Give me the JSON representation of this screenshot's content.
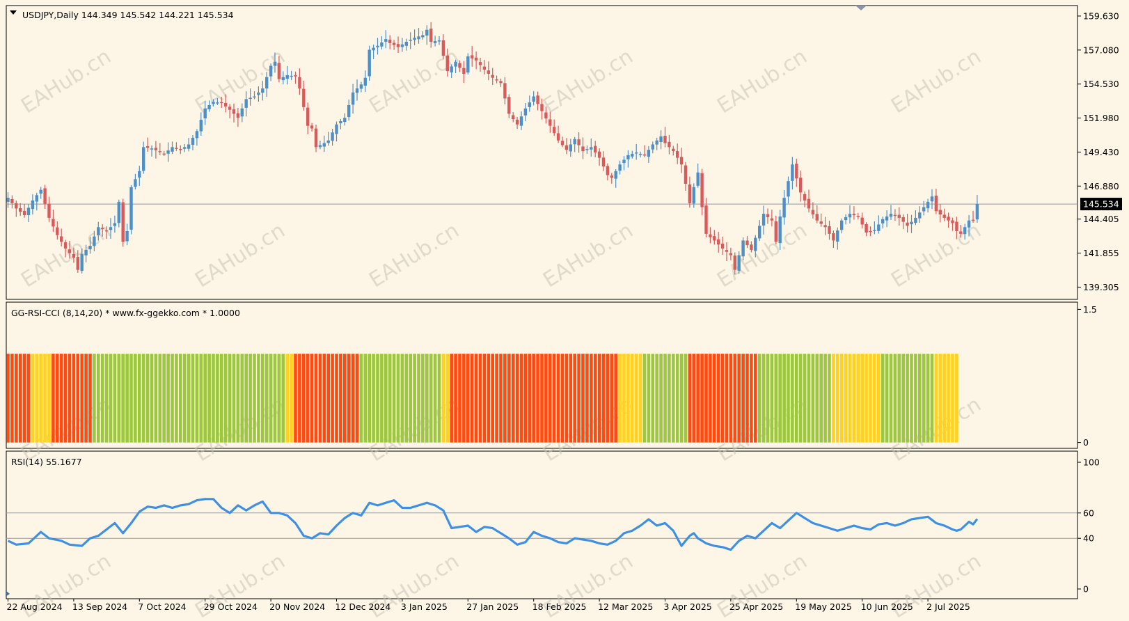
{
  "colors": {
    "background": "#fdf6e7",
    "frame": "#000000",
    "grid": "#999999",
    "text": "#000000",
    "bull": "#4d8fc8",
    "bear": "#d75b5b",
    "rsi_line": "#3e8fe6",
    "price_line": "#8a96a8",
    "price_tag_bg": "#000000",
    "price_tag_text": "#ffffff",
    "hist_red": "#ff4a10",
    "hist_yellow": "#ffd21f",
    "hist_green": "#9dc83e",
    "watermark": "#c9c2b4"
  },
  "watermark_text": "EAHub.cn",
  "chart_data": [
    {
      "type": "candlestick",
      "title": "USDJPY,Daily  144.349 145.542 144.221 145.534",
      "symbol": "USDJPY",
      "timeframe": "Daily",
      "ohlc_readout": {
        "open": 144.349,
        "high": 145.542,
        "low": 144.221,
        "close": 145.534
      },
      "current_price_label": "145.534",
      "current_price": 145.534,
      "ylim": [
        138.7,
        160.1
      ],
      "y_ticks": [
        "159.630",
        "157.080",
        "154.530",
        "151.980",
        "149.430",
        "146.880",
        "144.405",
        "141.855",
        "139.305"
      ],
      "y_tick_values": [
        159.63,
        157.08,
        154.53,
        151.98,
        149.43,
        146.88,
        144.405,
        141.855,
        139.305
      ],
      "x_ticks": [
        "22 Aug 2024",
        "13 Sep 2024",
        "7 Oct 2024",
        "29 Oct 2024",
        "20 Nov 2024",
        "12 Dec 2024",
        "3 Jan 2025",
        "27 Jan 2025",
        "18 Feb 2025",
        "12 Mar 2025",
        "3 Apr 2025",
        "25 Apr 2025",
        "19 May 2025",
        "10 Jun 2025",
        "2 Jul 2025"
      ],
      "close_anchors": [
        [
          0,
          146.0
        ],
        [
          2,
          145.2
        ],
        [
          4,
          144.7
        ],
        [
          6,
          145.8
        ],
        [
          8,
          146.6
        ],
        [
          10,
          144.5
        ],
        [
          12,
          143.2
        ],
        [
          14,
          142.2
        ],
        [
          16,
          141.5
        ],
        [
          17,
          140.6
        ],
        [
          18,
          141.8
        ],
        [
          20,
          142.4
        ],
        [
          22,
          143.8
        ],
        [
          24,
          143.5
        ],
        [
          26,
          144.1
        ],
        [
          27,
          145.7
        ],
        [
          28,
          142.7
        ],
        [
          29,
          143.5
        ],
        [
          30,
          146.8
        ],
        [
          32,
          148.0
        ],
        [
          33,
          149.8
        ],
        [
          35,
          149.7
        ],
        [
          38,
          149.3
        ],
        [
          40,
          149.8
        ],
        [
          42,
          149.6
        ],
        [
          44,
          150.0
        ],
        [
          46,
          151.0
        ],
        [
          48,
          152.7
        ],
        [
          50,
          153.2
        ],
        [
          52,
          153.1
        ],
        [
          54,
          152.6
        ],
        [
          56,
          152.0
        ],
        [
          58,
          153.4
        ],
        [
          60,
          153.6
        ],
        [
          62,
          154.2
        ],
        [
          64,
          155.9
        ],
        [
          65,
          156.2
        ],
        [
          66,
          154.9
        ],
        [
          68,
          155.2
        ],
        [
          70,
          155.1
        ],
        [
          71,
          154.2
        ],
        [
          73,
          151.4
        ],
        [
          74,
          151.2
        ],
        [
          75,
          149.8
        ],
        [
          77,
          150.1
        ],
        [
          78,
          150.3
        ],
        [
          80,
          151.5
        ],
        [
          82,
          152.0
        ],
        [
          84,
          153.9
        ],
        [
          86,
          154.5
        ],
        [
          87,
          155.0
        ],
        [
          88,
          157.1
        ],
        [
          90,
          157.4
        ],
        [
          92,
          157.9
        ],
        [
          93,
          157.6
        ],
        [
          95,
          157.3
        ],
        [
          97,
          157.7
        ],
        [
          99,
          158.0
        ],
        [
          101,
          158.2
        ],
        [
          102,
          158.6
        ],
        [
          103,
          157.7
        ],
        [
          105,
          157.8
        ],
        [
          107,
          155.5
        ],
        [
          109,
          156.2
        ],
        [
          111,
          155.3
        ],
        [
          112,
          156.6
        ],
        [
          114,
          156.3
        ],
        [
          116,
          155.6
        ],
        [
          118,
          155.0
        ],
        [
          120,
          154.6
        ],
        [
          122,
          152.3
        ],
        [
          124,
          151.5
        ],
        [
          126,
          152.7
        ],
        [
          128,
          153.6
        ],
        [
          130,
          152.5
        ],
        [
          132,
          151.4
        ],
        [
          134,
          150.3
        ],
        [
          136,
          149.6
        ],
        [
          138,
          150.4
        ],
        [
          140,
          149.5
        ],
        [
          142,
          149.8
        ],
        [
          144,
          149.0
        ],
        [
          146,
          147.7
        ],
        [
          147,
          147.5
        ],
        [
          149,
          148.5
        ],
        [
          151,
          149.2
        ],
        [
          153,
          149.4
        ],
        [
          155,
          149.2
        ],
        [
          157,
          150.0
        ],
        [
          159,
          150.6
        ],
        [
          160,
          150.1
        ],
        [
          162,
          149.5
        ],
        [
          164,
          148.5
        ],
        [
          166,
          145.6
        ],
        [
          167,
          146.8
        ],
        [
          168,
          147.9
        ],
        [
          169,
          145.3
        ],
        [
          170,
          143.3
        ],
        [
          172,
          142.8
        ],
        [
          174,
          142.2
        ],
        [
          176,
          141.7
        ],
        [
          177,
          140.6
        ],
        [
          179,
          142.8
        ],
        [
          181,
          142.1
        ],
        [
          182,
          143.0
        ],
        [
          184,
          144.8
        ],
        [
          186,
          144.3
        ],
        [
          187,
          142.7
        ],
        [
          188,
          144.6
        ],
        [
          189,
          146.0
        ],
        [
          191,
          148.5
        ],
        [
          193,
          146.4
        ],
        [
          195,
          145.2
        ],
        [
          197,
          144.3
        ],
        [
          199,
          143.8
        ],
        [
          201,
          142.8
        ],
        [
          203,
          144.3
        ],
        [
          205,
          144.8
        ],
        [
          207,
          144.6
        ],
        [
          209,
          143.4
        ],
        [
          211,
          143.6
        ],
        [
          213,
          144.4
        ],
        [
          215,
          144.8
        ],
        [
          217,
          144.5
        ],
        [
          219,
          143.9
        ],
        [
          221,
          144.5
        ],
        [
          223,
          145.3
        ],
        [
          224,
          145.7
        ],
        [
          225,
          146.1
        ],
        [
          226,
          145.0
        ],
        [
          228,
          144.5
        ],
        [
          230,
          144.1
        ],
        [
          231,
          143.5
        ],
        [
          232,
          143.3
        ],
        [
          234,
          144.3
        ],
        [
          235,
          144.3
        ],
        [
          236,
          145.534
        ]
      ]
    },
    {
      "type": "histogram",
      "title": "GG-RSI-CCI (8,14,20) * www.fx-ggekko.com *  1.0000",
      "value": 1.0,
      "ylim": [
        -0.05,
        1.55
      ],
      "y_ticks": [
        "1.5",
        "0"
      ],
      "y_tick_values": [
        1.5,
        0
      ],
      "bar_height_value": 1.0,
      "color_runs": [
        {
          "color": "red",
          "count": 6
        },
        {
          "color": "yellow",
          "count": 5
        },
        {
          "color": "red",
          "count": 10
        },
        {
          "color": "green",
          "count": 47
        },
        {
          "color": "yellow",
          "count": 2
        },
        {
          "color": "red",
          "count": 16
        },
        {
          "color": "green",
          "count": 20
        },
        {
          "color": "yellow",
          "count": 2
        },
        {
          "color": "red",
          "count": 41
        },
        {
          "color": "yellow",
          "count": 6
        },
        {
          "color": "green",
          "count": 11
        },
        {
          "color": "red",
          "count": 1
        },
        {
          "color": "red",
          "count": 16
        },
        {
          "color": "green",
          "count": 18
        },
        {
          "color": "yellow",
          "count": 12
        },
        {
          "color": "green",
          "count": 1
        },
        {
          "color": "green",
          "count": 12
        },
        {
          "color": "yellow",
          "count": 6
        }
      ]
    },
    {
      "type": "line",
      "title": "RSI(14) 55.1677",
      "series_name": "RSI(14)",
      "last_value": 55.1677,
      "ylim": [
        0,
        100
      ],
      "y_ticks": [
        "100",
        "60",
        "40",
        "0"
      ],
      "y_tick_values": [
        100,
        60,
        40,
        0
      ],
      "levels": [
        60,
        40
      ],
      "anchors": [
        [
          0,
          38
        ],
        [
          2,
          35
        ],
        [
          5,
          36
        ],
        [
          8,
          45
        ],
        [
          10,
          40
        ],
        [
          13,
          38
        ],
        [
          15,
          35
        ],
        [
          18,
          34
        ],
        [
          20,
          40
        ],
        [
          22,
          42
        ],
        [
          24,
          47
        ],
        [
          26,
          52
        ],
        [
          28,
          44
        ],
        [
          30,
          52
        ],
        [
          32,
          61
        ],
        [
          34,
          65
        ],
        [
          36,
          64
        ],
        [
          38,
          66
        ],
        [
          40,
          64
        ],
        [
          42,
          66
        ],
        [
          44,
          67
        ],
        [
          46,
          70
        ],
        [
          48,
          71
        ],
        [
          50,
          71
        ],
        [
          52,
          64
        ],
        [
          54,
          60
        ],
        [
          56,
          66
        ],
        [
          58,
          62
        ],
        [
          60,
          66
        ],
        [
          62,
          69
        ],
        [
          64,
          60
        ],
        [
          66,
          60
        ],
        [
          68,
          58
        ],
        [
          70,
          52
        ],
        [
          72,
          42
        ],
        [
          74,
          40
        ],
        [
          76,
          44
        ],
        [
          78,
          43
        ],
        [
          80,
          50
        ],
        [
          82,
          56
        ],
        [
          84,
          60
        ],
        [
          86,
          58
        ],
        [
          88,
          68
        ],
        [
          90,
          66
        ],
        [
          92,
          68
        ],
        [
          94,
          70
        ],
        [
          96,
          64
        ],
        [
          98,
          64
        ],
        [
          100,
          66
        ],
        [
          102,
          68
        ],
        [
          104,
          66
        ],
        [
          106,
          62
        ],
        [
          108,
          48
        ],
        [
          110,
          49
        ],
        [
          112,
          50
        ],
        [
          114,
          45
        ],
        [
          116,
          49
        ],
        [
          118,
          48
        ],
        [
          120,
          44
        ],
        [
          122,
          40
        ],
        [
          124,
          35
        ],
        [
          126,
          37
        ],
        [
          128,
          45
        ],
        [
          130,
          42
        ],
        [
          132,
          40
        ],
        [
          134,
          37
        ],
        [
          136,
          36
        ],
        [
          138,
          40
        ],
        [
          140,
          39
        ],
        [
          142,
          38
        ],
        [
          144,
          36
        ],
        [
          146,
          35
        ],
        [
          148,
          38
        ],
        [
          150,
          44
        ],
        [
          152,
          46
        ],
        [
          154,
          50
        ],
        [
          156,
          55
        ],
        [
          158,
          50
        ],
        [
          160,
          52
        ],
        [
          162,
          46
        ],
        [
          164,
          34
        ],
        [
          166,
          42
        ],
        [
          167,
          44
        ],
        [
          168,
          40
        ],
        [
          170,
          36
        ],
        [
          172,
          34
        ],
        [
          174,
          33
        ],
        [
          176,
          31
        ],
        [
          178,
          38
        ],
        [
          180,
          42
        ],
        [
          182,
          40
        ],
        [
          184,
          46
        ],
        [
          186,
          52
        ],
        [
          188,
          48
        ],
        [
          190,
          54
        ],
        [
          192,
          60
        ],
        [
          194,
          56
        ],
        [
          196,
          52
        ],
        [
          198,
          50
        ],
        [
          200,
          48
        ],
        [
          202,
          46
        ],
        [
          204,
          48
        ],
        [
          206,
          50
        ],
        [
          208,
          48
        ],
        [
          210,
          47
        ],
        [
          212,
          51
        ],
        [
          214,
          52
        ],
        [
          216,
          50
        ],
        [
          218,
          52
        ],
        [
          220,
          55
        ],
        [
          222,
          56
        ],
        [
          224,
          57
        ],
        [
          226,
          52
        ],
        [
          228,
          50
        ],
        [
          230,
          47
        ],
        [
          231,
          46
        ],
        [
          232,
          47
        ],
        [
          234,
          53
        ],
        [
          235,
          51
        ],
        [
          236,
          55.2
        ]
      ]
    }
  ]
}
